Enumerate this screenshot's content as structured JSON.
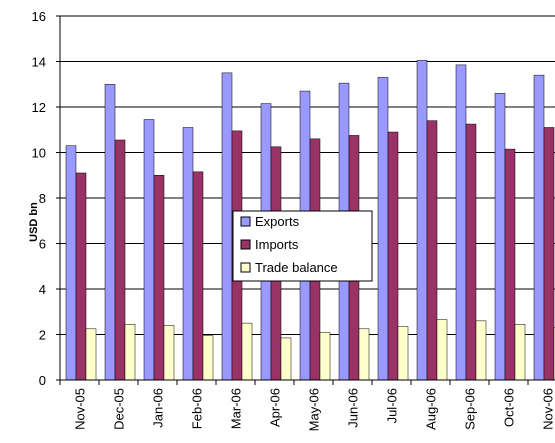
{
  "chart_data": {
    "type": "bar",
    "title": "",
    "xlabel": "",
    "ylabel": "USD bn",
    "ylim": [
      0,
      16
    ],
    "yticks": [
      0,
      2,
      4,
      6,
      8,
      10,
      12,
      14,
      16
    ],
    "categories": [
      "Nov-05",
      "Dec-05",
      "Jan-06",
      "Feb-06",
      "Mar-06",
      "Apr-06",
      "May-06",
      "Jun-06",
      "Jul-06",
      "Aug-06",
      "Sep-06",
      "Oct-06",
      "Nov-06"
    ],
    "series": [
      {
        "name": "Exports",
        "color": "#9999ff",
        "values": [
          10.3,
          13.0,
          11.45,
          11.1,
          13.5,
          12.15,
          12.7,
          13.05,
          13.3,
          14.05,
          13.85,
          12.6,
          13.4
        ]
      },
      {
        "name": "Imports",
        "color": "#993366",
        "values": [
          9.1,
          10.55,
          9.0,
          9.15,
          10.95,
          10.25,
          10.6,
          10.75,
          10.9,
          11.4,
          11.25,
          10.15,
          11.1
        ]
      },
      {
        "name": "Trade balance",
        "color": "#ffffcc",
        "values": [
          2.25,
          2.45,
          2.4,
          1.95,
          2.5,
          1.85,
          2.1,
          2.25,
          2.35,
          2.65,
          2.6,
          2.45,
          2.3
        ]
      }
    ],
    "grid": true,
    "legend_position": "center"
  }
}
